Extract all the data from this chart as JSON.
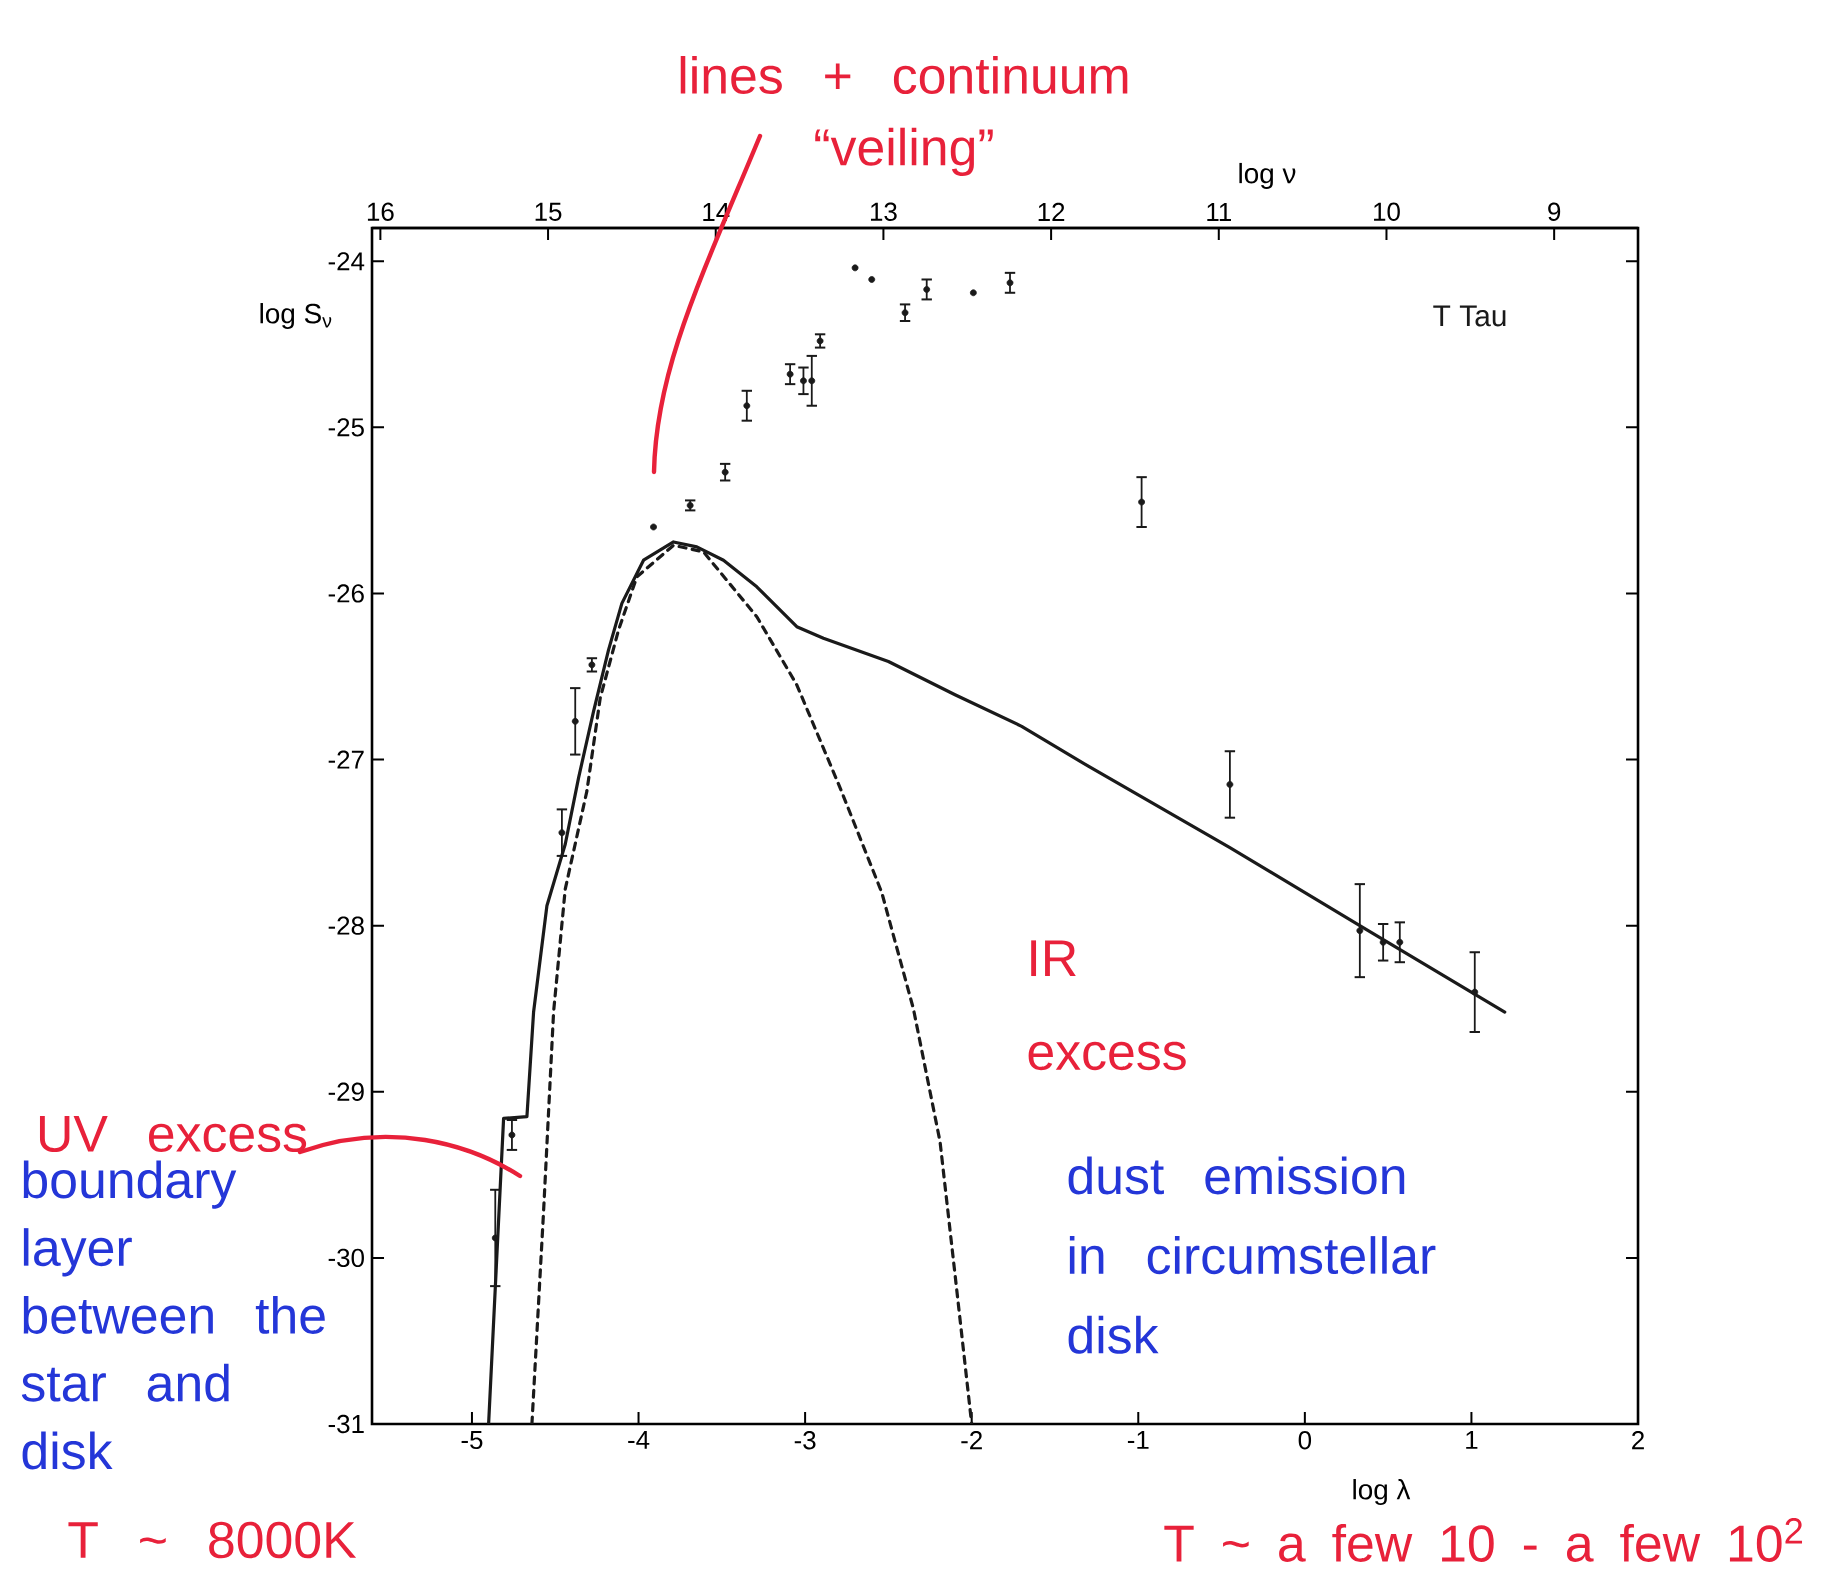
{
  "chart_data": {
    "type": "scatter",
    "xlabel": "log λ",
    "ylabel": "log S$_{ν}$",
    "x2label": "log ν",
    "xlim": [
      -5.6,
      2
    ],
    "ylim": [
      -31,
      -23.8
    ],
    "x2lim": [
      16.05,
      8.5
    ],
    "xticks": [
      -5,
      -4,
      -3,
      -2,
      -1,
      0,
      1,
      2
    ],
    "yticks": [
      -31,
      -30,
      -29,
      -28,
      -27,
      -26,
      -25,
      -24
    ],
    "x2ticks": [
      16,
      15,
      14,
      13,
      12,
      11,
      10,
      9
    ],
    "series": [
      {
        "color": "#1a1a1a",
        "marker": "circle",
        "x": [
          -4.86,
          -4.76,
          -4.46,
          -4.38,
          -4.28,
          -3.91,
          -3.69,
          -3.48,
          -3.35,
          -3.09,
          -3.01,
          -2.96,
          -2.91,
          -2.7,
          -2.6,
          -2.4,
          -2.27,
          -1.99,
          -1.77,
          -0.98,
          -0.45,
          0.33,
          0.47,
          0.57,
          1.02
        ],
        "values": [
          -29.88,
          -29.26,
          -27.44,
          -26.77,
          -26.43,
          -25.6,
          -25.47,
          -25.27,
          -24.87,
          -24.68,
          -24.72,
          -24.72,
          -24.48,
          -24.04,
          -24.11,
          -24.31,
          -24.17,
          -24.19,
          -24.13,
          -25.45,
          -27.15,
          -28.03,
          -28.1,
          -28.1,
          -28.4
        ],
        "errors": [
          0.29,
          0.09,
          0.14,
          0.2,
          0.04,
          null,
          0.03,
          0.05,
          0.09,
          0.06,
          0.08,
          0.15,
          0.04,
          null,
          null,
          0.05,
          0.06,
          null,
          0.06,
          0.15,
          0.2,
          0.28,
          0.11,
          0.12,
          0.24
        ]
      },
      {
        "type": "line",
        "color": "#1a1a1a",
        "line_style": "solid",
        "x": [
          -4.9,
          -4.81,
          -4.67,
          -4.63,
          -4.55,
          -4.44,
          -4.36,
          -4.27,
          -4.18,
          -4.1,
          -3.97,
          -3.79,
          -3.65,
          -3.49,
          -3.29,
          -3.05,
          -2.89,
          -2.5,
          -2.1,
          -1.7,
          -1.3,
          -0.45,
          0.33,
          1.2
        ],
        "values": [
          -31,
          -29.16,
          -29.15,
          -28.52,
          -27.88,
          -27.51,
          -27.11,
          -26.71,
          -26.34,
          -26.06,
          -25.8,
          -25.69,
          -25.72,
          -25.8,
          -25.96,
          -26.2,
          -26.27,
          -26.41,
          -26.61,
          -26.8,
          -27.04,
          -27.53,
          -28.0,
          -28.52
        ]
      },
      {
        "type": "line",
        "color": "#1a1a1a",
        "line_style": "dashed",
        "x": [
          -4.64,
          -4.57,
          -4.51,
          -4.44,
          -4.31,
          -4.23,
          -4.12,
          -4.01,
          -3.79,
          -3.61,
          -3.29,
          -3.05,
          -2.79,
          -2.54,
          -2.35,
          -2.19,
          -2.1,
          -2.0
        ],
        "values": [
          -31,
          -29.72,
          -28.52,
          -27.78,
          -27.19,
          -26.63,
          -26.22,
          -25.9,
          -25.71,
          -25.75,
          -26.14,
          -26.55,
          -27.17,
          -27.8,
          -28.5,
          -29.3,
          -30.1,
          -31
        ]
      }
    ],
    "annotations": [
      "lines + continuum “veiling”",
      "UV excess",
      "boundary layer between the star and disk",
      "T ~ 8000K",
      "IR excess",
      "dust emission in circumstellar disk",
      "T ~ a few 10 - a few 10$^{2}$",
      "T Tau"
    ]
  }
}
